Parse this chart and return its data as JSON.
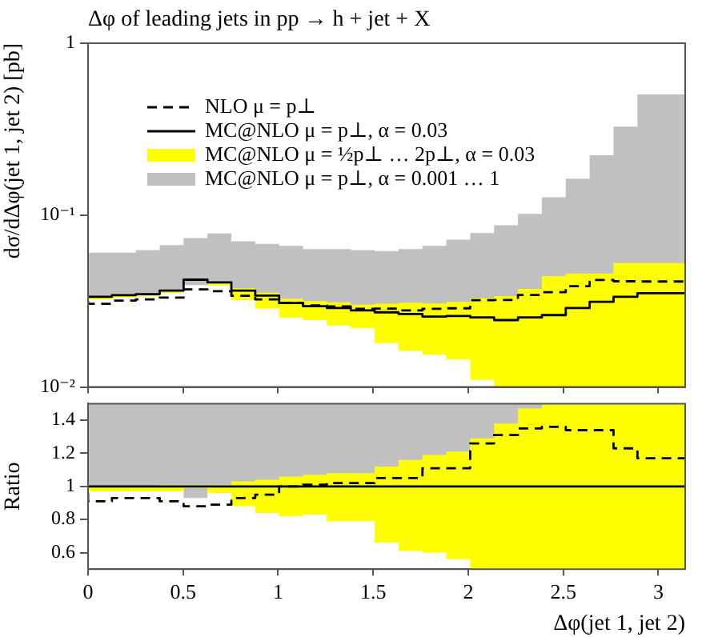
{
  "chart_data": [
    {
      "type": "step",
      "title": "Δφ of leading jets in pp → h + jet + X",
      "ylabel": "dσ/dΔφ(jet 1, jet 2) [pb]",
      "x": [
        0,
        0.1257,
        0.2513,
        0.377,
        0.5027,
        0.6283,
        0.754,
        0.8796,
        1.0053,
        1.131,
        1.2566,
        1.3823,
        1.508,
        1.6336,
        1.7593,
        1.885,
        2.0106,
        2.1363,
        2.2619,
        2.3876,
        2.5133,
        2.6389,
        2.7646,
        2.8903,
        3.0159,
        3.1416
      ],
      "xlim": [
        0,
        3.1416
      ],
      "xticks": [
        0,
        0.5,
        1,
        1.5,
        2,
        2.5,
        3
      ],
      "ylim": [
        0.01,
        1
      ],
      "yticks": [
        {
          "value": 0.01,
          "label": "10⁻²"
        },
        {
          "value": 0.1,
          "label": "10⁻¹"
        },
        1
      ],
      "log": "y",
      "grid": false,
      "legend": "top left",
      "tick_labels": "y",
      "series": [
        {
          "name": "NLO μ = p⊥",
          "color": "#000000",
          "line_style": "dashed",
          "values": [
            0.0317,
            0.0305,
            0.0318,
            0.0323,
            0.0331,
            0.037,
            0.0361,
            0.0339,
            0.0323,
            0.0308,
            0.0298,
            0.0294,
            0.0285,
            0.0286,
            0.0279,
            0.0285,
            0.0287,
            0.032,
            0.0321,
            0.0343,
            0.0356,
            0.0386,
            0.0419,
            0.0412,
            0.0411,
            0.0411
          ]
        },
        {
          "name": "MC@NLO μ = p⊥, α = 0.03",
          "color": "#000000",
          "line_style": "solid",
          "values": [
            0.033,
            0.0335,
            0.0342,
            0.0347,
            0.0364,
            0.0421,
            0.0406,
            0.0364,
            0.034,
            0.0308,
            0.0295,
            0.0288,
            0.0279,
            0.0272,
            0.0266,
            0.0257,
            0.0259,
            0.0254,
            0.0245,
            0.0254,
            0.0262,
            0.0288,
            0.0313,
            0.0335,
            0.0351,
            0.0351
          ]
        },
        {
          "name": "MC@NLO μ = ½p⊥ … 2p⊥, α = 0.03",
          "color": "#ffff00",
          "values": [
            null,
            null,
            null,
            null,
            null,
            null,
            null,
            null,
            null,
            null,
            null,
            null,
            null,
            null,
            null,
            null,
            null,
            null,
            null,
            null,
            null,
            null,
            null,
            null,
            null,
            null
          ],
          "lower": [
            0.032,
            0.0325,
            0.0332,
            0.0337,
            0.0353,
            0.0417,
            0.039,
            0.032,
            0.0286,
            0.0253,
            0.0245,
            0.0228,
            0.022,
            0.018,
            0.0162,
            0.0154,
            0.0145,
            0.011,
            0.01,
            0.01,
            0.01,
            0.01,
            0.01,
            0.01,
            0.01,
            0.01
          ],
          "upper": [
            0.033,
            0.0335,
            0.0342,
            0.0347,
            0.0368,
            0.0425,
            0.041,
            0.0375,
            0.0354,
            0.0326,
            0.0316,
            0.0311,
            0.0301,
            0.0305,
            0.0309,
            0.0306,
            0.0313,
            0.0328,
            0.0338,
            0.0372,
            0.0442,
            0.0458,
            0.0458,
            0.0526,
            0.0526,
            0.0526
          ]
        },
        {
          "name": "MC@NLO μ = p⊥, α = 0.001 … 1",
          "color": "#c0c0c0",
          "values": [
            null,
            null,
            null,
            null,
            null,
            null,
            null,
            null,
            null,
            null,
            null,
            null,
            null,
            null,
            null,
            null,
            null,
            null,
            null,
            null,
            null,
            null,
            null,
            null,
            null,
            null
          ],
          "lower": [
            0.033,
            0.0335,
            0.0342,
            0.0347,
            0.0364,
            0.0392,
            0.0406,
            0.0364,
            0.034,
            0.0308,
            0.0295,
            0.0288,
            0.0279,
            0.0272,
            0.0266,
            0.0257,
            0.0259,
            0.0254,
            0.0245,
            0.0254,
            0.0262,
            0.0288,
            0.0313,
            0.0335,
            0.0351,
            0.0351
          ],
          "upper": [
            0.0585,
            0.0604,
            0.0604,
            0.0626,
            0.067,
            0.0735,
            0.0782,
            0.0705,
            0.068,
            0.0662,
            0.0635,
            0.0635,
            0.0626,
            0.0617,
            0.0635,
            0.0662,
            0.0719,
            0.0787,
            0.0873,
            0.1017,
            0.127,
            0.163,
            0.223,
            0.327,
            0.503,
            0.503
          ]
        }
      ]
    },
    {
      "type": "step",
      "xlabel": "Δφ(jet 1, jet 2)",
      "ylabel": "Ratio",
      "x": [
        0,
        0.1257,
        0.2513,
        0.377,
        0.5027,
        0.6283,
        0.754,
        0.8796,
        1.0053,
        1.131,
        1.2566,
        1.3823,
        1.508,
        1.6336,
        1.7593,
        1.885,
        2.0106,
        2.1363,
        2.2619,
        2.3876,
        2.5133,
        2.6389,
        2.7646,
        2.8903,
        3.0159,
        3.1416
      ],
      "xlim": [
        0,
        3.1416
      ],
      "xticks": [
        0,
        0.5,
        1,
        1.5,
        2,
        2.5,
        3
      ],
      "ylim": [
        0.5,
        1.5
      ],
      "yticks": [
        0.6,
        0.8,
        1,
        1.2,
        1.4
      ],
      "grid": false,
      "series": [
        {
          "color": "#000000",
          "line_style": "dashed",
          "values": [
            0.96,
            0.91,
            0.93,
            0.93,
            0.91,
            0.88,
            0.89,
            0.93,
            0.95,
            1.0,
            1.01,
            1.02,
            1.02,
            1.05,
            1.05,
            1.11,
            1.11,
            1.26,
            1.31,
            1.35,
            1.36,
            1.34,
            1.34,
            1.23,
            1.17,
            1.17
          ]
        },
        {
          "color": "#000000",
          "line_style": "solid",
          "values": [
            1,
            1,
            1,
            1,
            1,
            1,
            1,
            1,
            1,
            1,
            1,
            1,
            1,
            1,
            1,
            1,
            1,
            1,
            1,
            1,
            1,
            1,
            1,
            1,
            1,
            1
          ]
        },
        {
          "color": "#ffff00",
          "values": [
            null,
            null,
            null,
            null,
            null,
            null,
            null,
            null,
            null,
            null,
            null,
            null,
            null,
            null,
            null,
            null,
            null,
            null,
            null,
            null,
            null,
            null,
            null,
            null,
            null,
            null
          ],
          "lower": [
            0.97,
            0.97,
            0.97,
            0.97,
            0.97,
            0.99,
            0.96,
            0.88,
            0.84,
            0.82,
            0.83,
            0.79,
            0.79,
            0.66,
            0.61,
            0.6,
            0.56,
            0.5,
            0.5,
            0.5,
            0.5,
            0.5,
            0.5,
            0.5,
            0.5,
            0.5
          ],
          "upper": [
            1.0,
            1.0,
            1.0,
            1.0,
            1.01,
            1.01,
            1.01,
            1.03,
            1.04,
            1.06,
            1.07,
            1.08,
            1.08,
            1.12,
            1.16,
            1.19,
            1.21,
            1.29,
            1.38,
            1.47,
            1.5,
            1.5,
            1.5,
            1.5,
            1.5,
            1.5
          ]
        },
        {
          "color": "#c0c0c0",
          "values": [
            null,
            null,
            null,
            null,
            null,
            null,
            null,
            null,
            null,
            null,
            null,
            null,
            null,
            null,
            null,
            null,
            null,
            null,
            null,
            null,
            null,
            null,
            null,
            null,
            null,
            null
          ],
          "lower": [
            1,
            1,
            1,
            1,
            1,
            0.93,
            1,
            1,
            1,
            1,
            1,
            1,
            1,
            1,
            1,
            1,
            1,
            1,
            1,
            1,
            1,
            1,
            1,
            1,
            1,
            1
          ],
          "upper": [
            1.5,
            1.5,
            1.5,
            1.5,
            1.5,
            1.5,
            1.5,
            1.5,
            1.5,
            1.5,
            1.5,
            1.5,
            1.5,
            1.5,
            1.5,
            1.5,
            1.5,
            1.5,
            1.5,
            1.5,
            1.5,
            1.5,
            1.5,
            1.5,
            1.5,
            1.5
          ]
        }
      ]
    }
  ]
}
